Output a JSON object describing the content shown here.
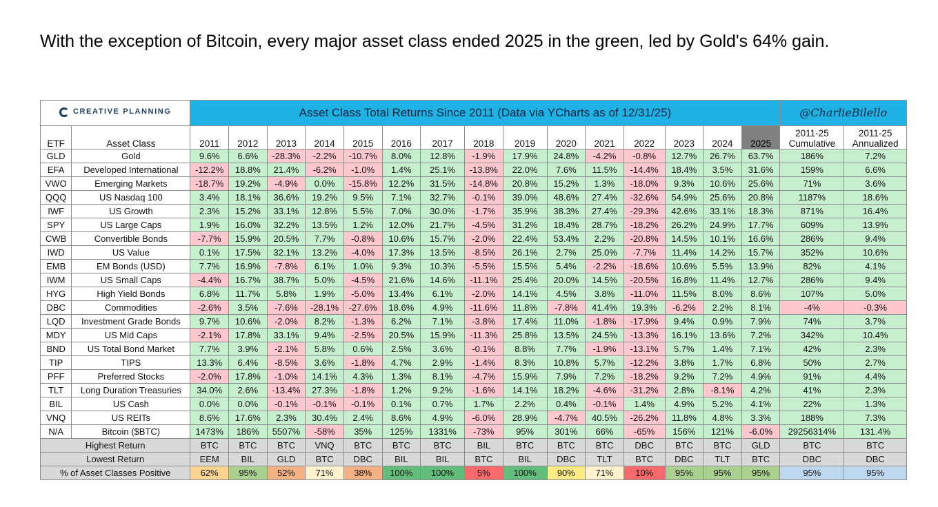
{
  "headline": "With the exception of Bitcoin, every major asset class ended 2025 in the green, led by Gold's 64% gain.",
  "logo_text": "CREATIVE PLANNING",
  "logo_icon": "creative-planning-logo-icon",
  "table_title": "Asset Class Total Returns Since 2011 (Data via YCharts as of 12/31/25)",
  "handle": "@CharlieBilello",
  "headers": {
    "etf": "ETF",
    "asset_class": "Asset Class",
    "years": [
      "2011",
      "2012",
      "2013",
      "2014",
      "2015",
      "2016",
      "2017",
      "2018",
      "2019",
      "2020",
      "2021",
      "2022",
      "2023",
      "2024",
      "2025"
    ],
    "cumulative_top": "2011-25",
    "cumulative_bottom": "Cumulative",
    "annualized_top": "2011-25",
    "annualized_bottom": "Annualized"
  },
  "colors": {
    "positive_fill": "#c6efce",
    "negative_fill": "#ffc7ce",
    "title_bar": "#1fb2e4"
  },
  "rows": [
    {
      "etf": "GLD",
      "name": "Gold",
      "values": [
        "9.6%",
        "6.6%",
        "-28.3%",
        "-2.2%",
        "-10.7%",
        "8.0%",
        "12.8%",
        "-1.9%",
        "17.9%",
        "24.8%",
        "-4.2%",
        "-0.8%",
        "12.7%",
        "26.7%",
        "63.7%"
      ],
      "cumulative": "186%",
      "annualized": "7.2%"
    },
    {
      "etf": "EFA",
      "name": "Developed International",
      "values": [
        "-12.2%",
        "18.8%",
        "21.4%",
        "-6.2%",
        "-1.0%",
        "1.4%",
        "25.1%",
        "-13.8%",
        "22.0%",
        "7.6%",
        "11.5%",
        "-14.4%",
        "18.4%",
        "3.5%",
        "31.6%"
      ],
      "cumulative": "159%",
      "annualized": "6.6%"
    },
    {
      "etf": "VWO",
      "name": "Emerging Markets",
      "values": [
        "-18.7%",
        "19.2%",
        "-4.9%",
        "0.0%",
        "-15.8%",
        "12.2%",
        "31.5%",
        "-14.8%",
        "20.8%",
        "15.2%",
        "1.3%",
        "-18.0%",
        "9.3%",
        "10.6%",
        "25.6%"
      ],
      "cumulative": "71%",
      "annualized": "3.6%"
    },
    {
      "etf": "QQQ",
      "name": "US Nasdaq 100",
      "values": [
        "3.4%",
        "18.1%",
        "36.6%",
        "19.2%",
        "9.5%",
        "7.1%",
        "32.7%",
        "-0.1%",
        "39.0%",
        "48.6%",
        "27.4%",
        "-32.6%",
        "54.9%",
        "25.6%",
        "20.8%"
      ],
      "cumulative": "1187%",
      "annualized": "18.6%"
    },
    {
      "etf": "IWF",
      "name": "US Growth",
      "values": [
        "2.3%",
        "15.2%",
        "33.1%",
        "12.8%",
        "5.5%",
        "7.0%",
        "30.0%",
        "-1.7%",
        "35.9%",
        "38.3%",
        "27.4%",
        "-29.3%",
        "42.6%",
        "33.1%",
        "18.3%"
      ],
      "cumulative": "871%",
      "annualized": "16.4%"
    },
    {
      "etf": "SPY",
      "name": "US Large Caps",
      "values": [
        "1.9%",
        "16.0%",
        "32.2%",
        "13.5%",
        "1.2%",
        "12.0%",
        "21.7%",
        "-4.5%",
        "31.2%",
        "18.4%",
        "28.7%",
        "-18.2%",
        "26.2%",
        "24.9%",
        "17.7%"
      ],
      "cumulative": "609%",
      "annualized": "13.9%"
    },
    {
      "etf": "CWB",
      "name": "Convertible Bonds",
      "values": [
        "-7.7%",
        "15.9%",
        "20.5%",
        "7.7%",
        "-0.8%",
        "10.6%",
        "15.7%",
        "-2.0%",
        "22.4%",
        "53.4%",
        "2.2%",
        "-20.8%",
        "14.5%",
        "10.1%",
        "16.6%"
      ],
      "cumulative": "286%",
      "annualized": "9.4%"
    },
    {
      "etf": "IWD",
      "name": "US Value",
      "values": [
        "0.1%",
        "17.5%",
        "32.1%",
        "13.2%",
        "-4.0%",
        "17.3%",
        "13.5%",
        "-8.5%",
        "26.1%",
        "2.7%",
        "25.0%",
        "-7.7%",
        "11.4%",
        "14.2%",
        "15.7%"
      ],
      "cumulative": "352%",
      "annualized": "10.6%"
    },
    {
      "etf": "EMB",
      "name": "EM Bonds (USD)",
      "values": [
        "7.7%",
        "16.9%",
        "-7.8%",
        "6.1%",
        "1.0%",
        "9.3%",
        "10.3%",
        "-5.5%",
        "15.5%",
        "5.4%",
        "-2.2%",
        "-18.6%",
        "10.6%",
        "5.5%",
        "13.9%"
      ],
      "cumulative": "82%",
      "annualized": "4.1%"
    },
    {
      "etf": "IWM",
      "name": "US Small Caps",
      "values": [
        "-4.4%",
        "16.7%",
        "38.7%",
        "5.0%",
        "-4.5%",
        "21.6%",
        "14.6%",
        "-11.1%",
        "25.4%",
        "20.0%",
        "14.5%",
        "-20.5%",
        "16.8%",
        "11.4%",
        "12.7%"
      ],
      "cumulative": "286%",
      "annualized": "9.4%"
    },
    {
      "etf": "HYG",
      "name": "High Yield Bonds",
      "values": [
        "6.8%",
        "11.7%",
        "5.8%",
        "1.9%",
        "-5.0%",
        "13.4%",
        "6.1%",
        "-2.0%",
        "14.1%",
        "4.5%",
        "3.8%",
        "-11.0%",
        "11.5%",
        "8.0%",
        "8.6%"
      ],
      "cumulative": "107%",
      "annualized": "5.0%"
    },
    {
      "etf": "DBC",
      "name": "Commodities",
      "values": [
        "-2.6%",
        "3.5%",
        "-7.6%",
        "-28.1%",
        "-27.6%",
        "18.6%",
        "4.9%",
        "-11.6%",
        "11.8%",
        "-7.8%",
        "41.4%",
        "19.3%",
        "-6.2%",
        "2.2%",
        "8.1%"
      ],
      "cumulative": "-4%",
      "annualized": "-0.3%"
    },
    {
      "etf": "LQD",
      "name": "Investment Grade Bonds",
      "values": [
        "9.7%",
        "10.6%",
        "-2.0%",
        "8.2%",
        "-1.3%",
        "6.2%",
        "7.1%",
        "-3.8%",
        "17.4%",
        "11.0%",
        "-1.8%",
        "-17.9%",
        "9.4%",
        "0.9%",
        "7.9%"
      ],
      "cumulative": "74%",
      "annualized": "3.7%"
    },
    {
      "etf": "MDY",
      "name": "US Mid Caps",
      "values": [
        "-2.1%",
        "17.8%",
        "33.1%",
        "9.4%",
        "-2.5%",
        "20.5%",
        "15.9%",
        "-11.3%",
        "25.8%",
        "13.5%",
        "24.5%",
        "-13.3%",
        "16.1%",
        "13.6%",
        "7.2%"
      ],
      "cumulative": "342%",
      "annualized": "10.4%"
    },
    {
      "etf": "BND",
      "name": "US Total Bond Market",
      "values": [
        "7.7%",
        "3.9%",
        "-2.1%",
        "5.8%",
        "0.6%",
        "2.5%",
        "3.6%",
        "-0.1%",
        "8.8%",
        "7.7%",
        "-1.9%",
        "-13.1%",
        "5.7%",
        "1.4%",
        "7.1%"
      ],
      "cumulative": "42%",
      "annualized": "2.3%"
    },
    {
      "etf": "TIP",
      "name": "TIPS",
      "values": [
        "13.3%",
        "6.4%",
        "-8.5%",
        "3.6%",
        "-1.8%",
        "4.7%",
        "2.9%",
        "-1.4%",
        "8.3%",
        "10.8%",
        "5.7%",
        "-12.2%",
        "3.8%",
        "1.7%",
        "6.8%"
      ],
      "cumulative": "50%",
      "annualized": "2.7%"
    },
    {
      "etf": "PFF",
      "name": "Preferred Stocks",
      "values": [
        "-2.0%",
        "17.8%",
        "-1.0%",
        "14.1%",
        "4.3%",
        "1.3%",
        "8.1%",
        "-4.7%",
        "15.9%",
        "7.9%",
        "7.2%",
        "-18.2%",
        "9.2%",
        "7.2%",
        "4.9%"
      ],
      "cumulative": "91%",
      "annualized": "4.4%"
    },
    {
      "etf": "TLT",
      "name": "Long Duration Treasuries",
      "values": [
        "34.0%",
        "2.6%",
        "-13.4%",
        "27.3%",
        "-1.8%",
        "1.2%",
        "9.2%",
        "-1.6%",
        "14.1%",
        "18.2%",
        "-4.6%",
        "-31.2%",
        "2.8%",
        "-8.1%",
        "4.2%"
      ],
      "cumulative": "41%",
      "annualized": "2.3%"
    },
    {
      "etf": "BIL",
      "name": "US Cash",
      "values": [
        "0.0%",
        "0.0%",
        "-0.1%",
        "-0.1%",
        "-0.1%",
        "0.1%",
        "0.7%",
        "1.7%",
        "2.2%",
        "0.4%",
        "-0.1%",
        "1.4%",
        "4.9%",
        "5.2%",
        "4.1%"
      ],
      "cumulative": "22%",
      "annualized": "1.3%"
    },
    {
      "etf": "VNQ",
      "name": "US REITs",
      "values": [
        "8.6%",
        "17.6%",
        "2.3%",
        "30.4%",
        "2.4%",
        "8.6%",
        "4.9%",
        "-6.0%",
        "28.9%",
        "-4.7%",
        "40.5%",
        "-26.2%",
        "11.8%",
        "4.8%",
        "3.3%"
      ],
      "cumulative": "188%",
      "annualized": "7.3%"
    },
    {
      "etf": "N/A",
      "name": "Bitcoin ($BTC)",
      "values": [
        "1473%",
        "186%",
        "5507%",
        "-58%",
        "35%",
        "125%",
        "1331%",
        "-73%",
        "95%",
        "301%",
        "66%",
        "-65%",
        "156%",
        "121%",
        "-6.0%"
      ],
      "cumulative": "29256314%",
      "annualized": "131.4%"
    }
  ],
  "summary": {
    "highest": {
      "label": "Highest Return",
      "values": [
        "BTC",
        "BTC",
        "BTC",
        "VNQ",
        "BTC",
        "BTC",
        "BTC",
        "BIL",
        "BTC",
        "BTC",
        "BTC",
        "DBC",
        "BTC",
        "BTC",
        "GLD"
      ],
      "cumulative": "BTC",
      "annualized": "BTC"
    },
    "lowest": {
      "label": "Lowest Return",
      "values": [
        "EEM",
        "BIL",
        "GLD",
        "BTC",
        "DBC",
        "BIL",
        "BIL",
        "BTC",
        "BIL",
        "DBC",
        "TLT",
        "BTC",
        "DBC",
        "TLT",
        "BTC"
      ],
      "cumulative": "DBC",
      "annualized": "DBC"
    },
    "positive": {
      "label": "% of Asset Classes Positive",
      "values": [
        "62%",
        "95%",
        "52%",
        "71%",
        "38%",
        "100%",
        "100%",
        "5%",
        "100%",
        "90%",
        "71%",
        "10%",
        "95%",
        "95%",
        "95%"
      ],
      "cumulative": "95%",
      "annualized": "95%"
    }
  }
}
